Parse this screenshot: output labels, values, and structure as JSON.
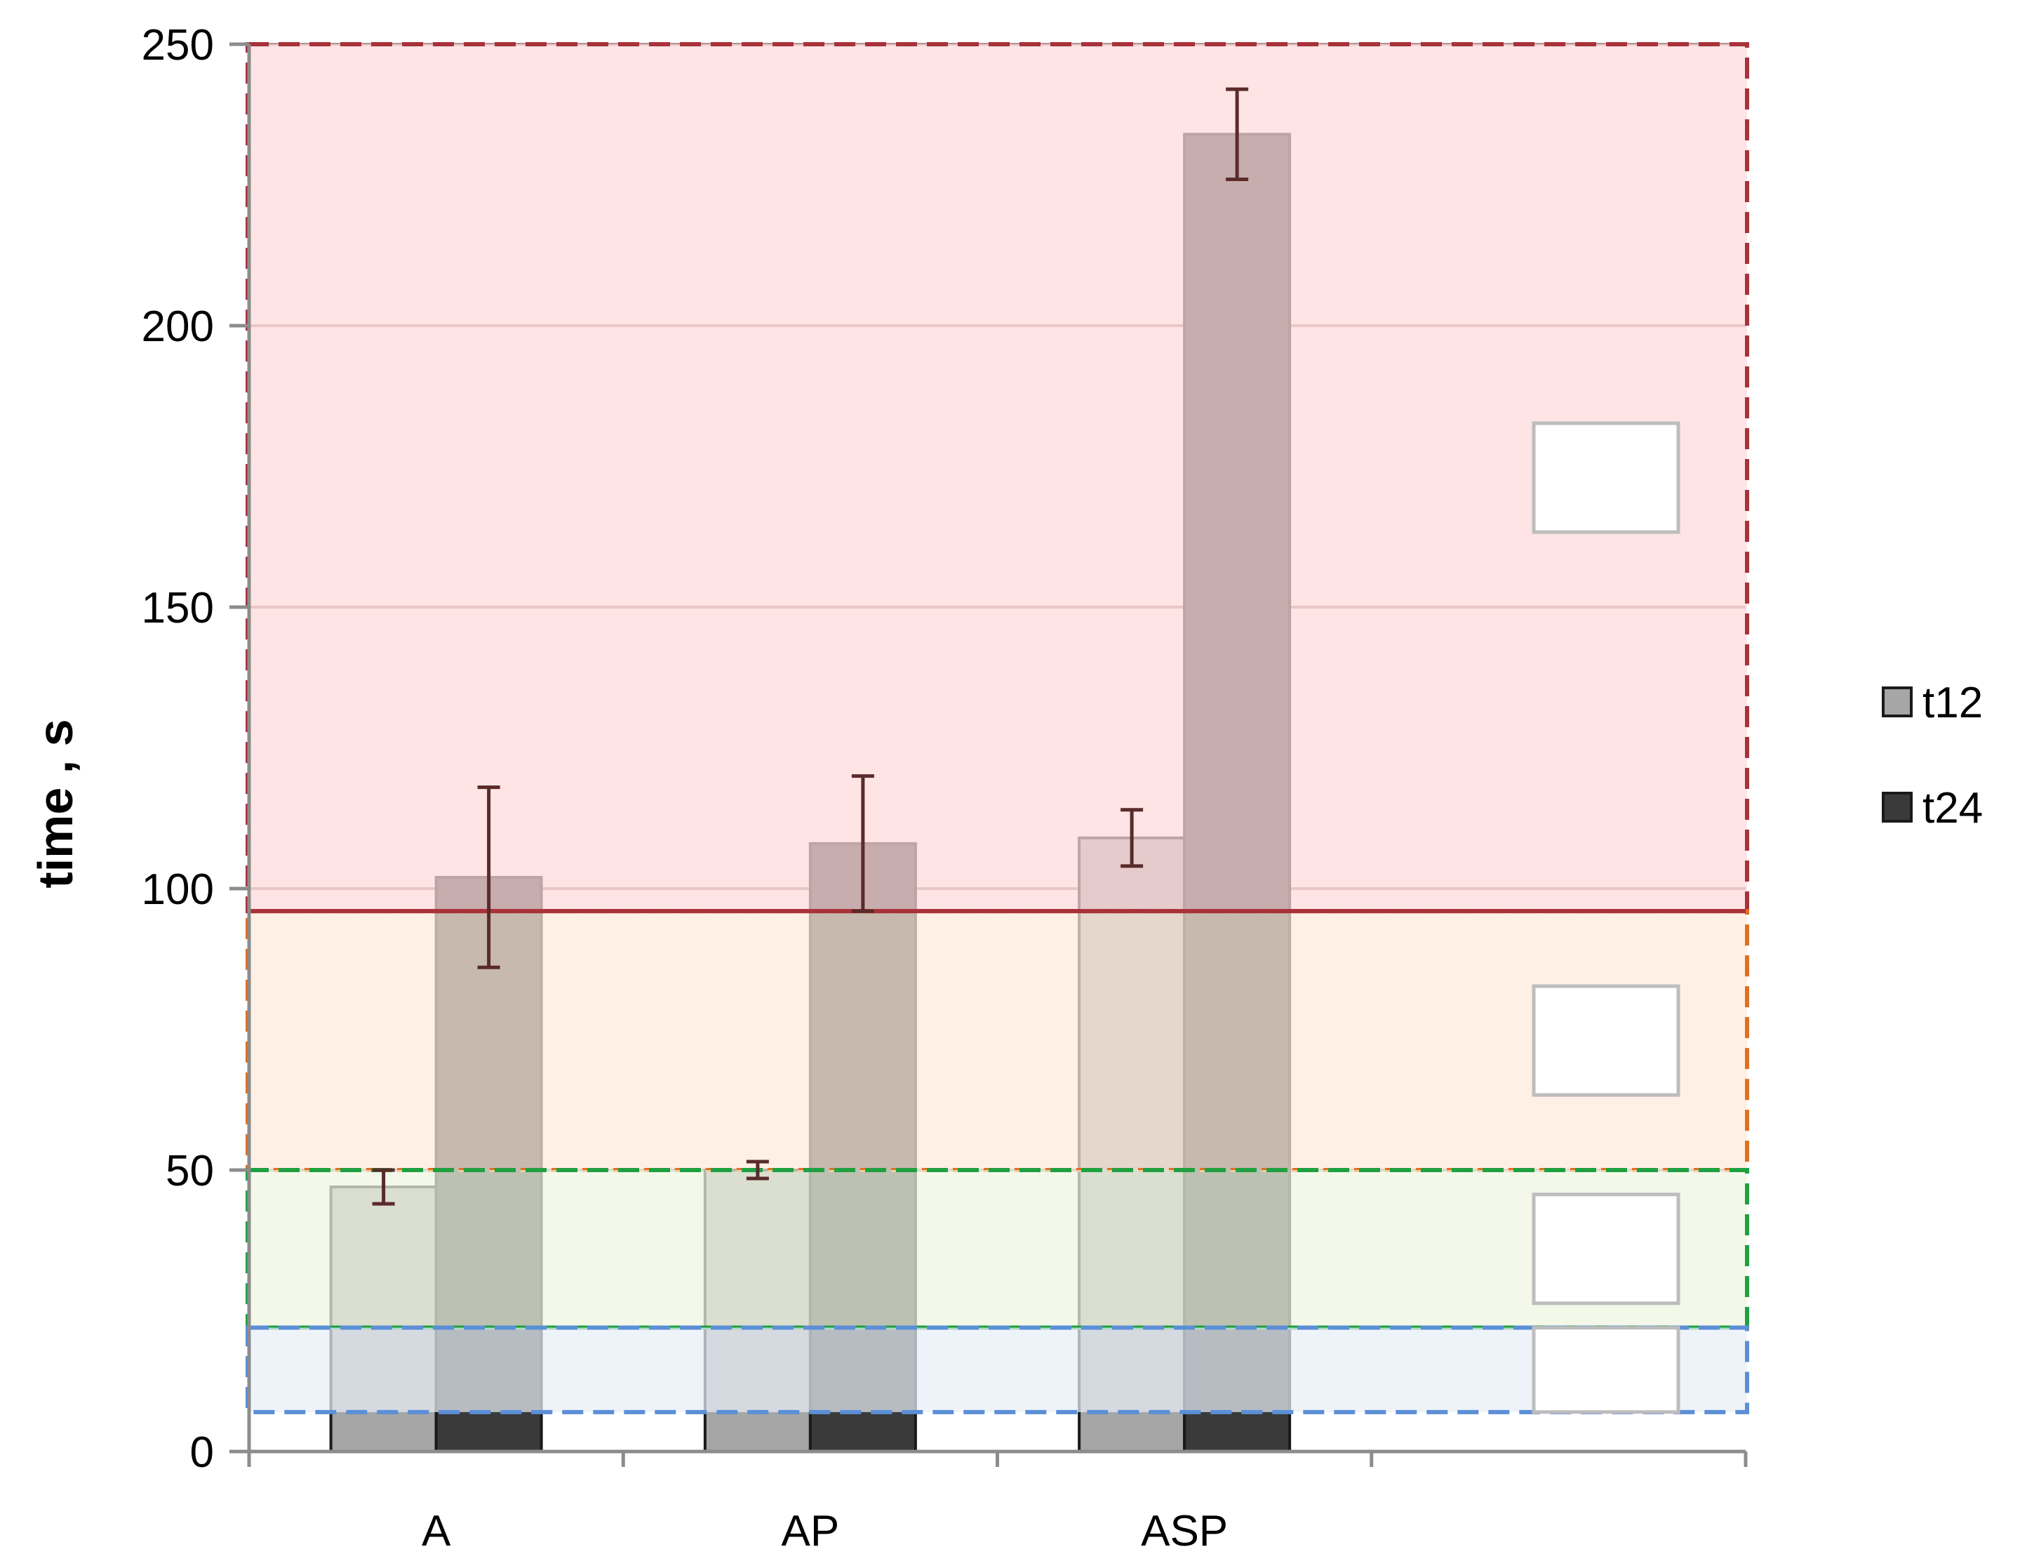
{
  "chart_data": {
    "type": "bar",
    "title": "",
    "xlabel": "",
    "ylabel": "time , s",
    "ylim": [
      0,
      250
    ],
    "yticks": [
      "0",
      "50",
      "100",
      "150",
      "200",
      "250"
    ],
    "categories": [
      "A",
      "AP",
      "ASP",
      ""
    ],
    "series": [
      {
        "name": "t12",
        "color": "#a6a6a6",
        "values": [
          47,
          50,
          109,
          null
        ],
        "errors": [
          3,
          1.5,
          5,
          null
        ]
      },
      {
        "name": "t24",
        "color": "#3a3a3a",
        "values": [
          102,
          108,
          234,
          null
        ],
        "errors": [
          16,
          12,
          8,
          null
        ]
      }
    ],
    "bands": [
      {
        "from": 96,
        "to": 250,
        "fill": "#fddada",
        "border": "#a8323a"
      },
      {
        "from": 50,
        "to": 96,
        "fill": "#fdeada",
        "border": "#e07020"
      },
      {
        "from": 22,
        "to": 50,
        "fill": "#eef5e0",
        "border": "#20a040"
      },
      {
        "from": 7,
        "to": 22,
        "fill": "#e8eef8",
        "border": "#5b8fd6"
      }
    ],
    "grid": true,
    "legend_position": "right",
    "error_bar_color": "#5a2a2a"
  }
}
